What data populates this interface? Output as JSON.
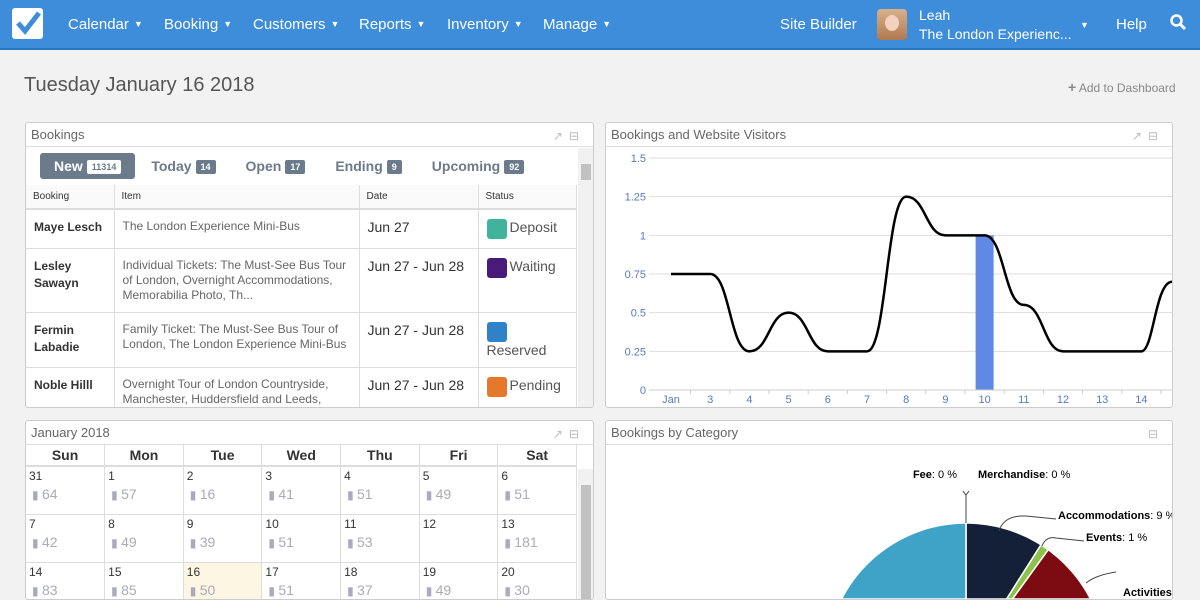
{
  "nav": {
    "items": [
      "Calendar",
      "Booking",
      "Customers",
      "Reports",
      "Inventory",
      "Manage"
    ],
    "site_builder": "Site Builder",
    "user_name": "Leah",
    "company": "The London Experienc...",
    "help": "Help"
  },
  "page": {
    "title": "Tuesday January 16 2018",
    "add_to_dashboard": "Add to Dashboard"
  },
  "bookings": {
    "title": "Bookings",
    "tabs": [
      {
        "label": "New",
        "count": "11314"
      },
      {
        "label": "Today",
        "count": "14"
      },
      {
        "label": "Open",
        "count": "17"
      },
      {
        "label": "Ending",
        "count": "9"
      },
      {
        "label": "Upcoming",
        "count": "92"
      }
    ],
    "columns": [
      "Booking",
      "Item",
      "Date",
      "Status"
    ],
    "rows": [
      {
        "name": "Maye Lesch",
        "item": "The London Experience Mini-Bus",
        "date": "Jun 27",
        "status": "Deposit",
        "color": "#3fb39b"
      },
      {
        "name": "Lesley Sawayn",
        "item": "Individual Tickets: The Must-See Bus Tour of London, Overnight Accommodations, Memorabilia Photo, Th...",
        "date": "Jun 27 - Jun 28",
        "status": "Waiting",
        "color": "#4a1a7a"
      },
      {
        "name": "Fermin Labadie",
        "item": "Family Ticket: The Must-See Bus Tour of London, The London Experience Mini-Bus",
        "date": "Jun 27 - Jun 28",
        "status": "Reserved",
        "color": "#2f82c8"
      },
      {
        "name": "Noble Hilll",
        "item": "Overnight Tour of London Countryside, Manchester, Huddersfield and Leeds,",
        "date": "Jun 27 - Jun 28",
        "status": "Pending",
        "color": "#e5782a"
      }
    ]
  },
  "calendar": {
    "title": "January 2018",
    "days": [
      "Sun",
      "Mon",
      "Tue",
      "Wed",
      "Thu",
      "Fri",
      "Sat"
    ],
    "weeks": [
      [
        [
          "31",
          "64"
        ],
        [
          "1",
          "57"
        ],
        [
          "2",
          "16"
        ],
        [
          "3",
          "41"
        ],
        [
          "4",
          "51"
        ],
        [
          "5",
          "49"
        ],
        [
          "6",
          "51"
        ]
      ],
      [
        [
          "7",
          "42"
        ],
        [
          "8",
          "49"
        ],
        [
          "9",
          "39"
        ],
        [
          "10",
          "51"
        ],
        [
          "11",
          "53"
        ],
        [
          "12",
          ""
        ],
        [
          "13",
          "181"
        ]
      ],
      [
        [
          "14",
          "83"
        ],
        [
          "15",
          "85"
        ],
        [
          "16",
          "50"
        ],
        [
          "17",
          "51"
        ],
        [
          "18",
          "37"
        ],
        [
          "19",
          "49"
        ],
        [
          "20",
          "30"
        ]
      ]
    ]
  },
  "chart_data": [
    {
      "type": "line",
      "title": "Bookings and Website Visitors",
      "x": [
        "Jan",
        "3",
        "4",
        "5",
        "6",
        "7",
        "8",
        "9",
        "10",
        "11",
        "12",
        "13",
        "14"
      ],
      "series": [
        {
          "values": [
            0.75,
            0.75,
            0.25,
            0.5,
            0.25,
            0.25,
            1.25,
            1,
            1,
            0.55,
            0.25,
            0.25,
            0.25
          ]
        },
        {
          "type": "bar",
          "values": [
            0,
            0,
            0,
            0,
            0,
            0,
            0,
            0,
            1,
            0,
            0,
            0,
            0
          ],
          "color": "#6089e6"
        }
      ],
      "yticks": [
        "0",
        "0.25",
        "0.5",
        "0.75",
        "1",
        "1.25",
        "1.5"
      ],
      "ylim": [
        0,
        1.5
      ],
      "grid": true
    },
    {
      "type": "pie",
      "title": "Bookings by Category",
      "slices": [
        {
          "name": "Fee",
          "label": "0 %",
          "value": 0,
          "color": "#888888"
        },
        {
          "name": "Merchandise",
          "label": "0 %",
          "value": 0,
          "color": "#888888"
        },
        {
          "name": "Accommodations",
          "label": "9 %",
          "value": 9,
          "color": "#142038"
        },
        {
          "name": "Events",
          "label": "1 %",
          "value": 1,
          "color": "#8bc34a"
        },
        {
          "name": "Activities",
          "value": 30,
          "color": "#7d0c12"
        },
        {
          "name": "",
          "value": 60,
          "color": "#3fa3c8"
        }
      ]
    }
  ]
}
